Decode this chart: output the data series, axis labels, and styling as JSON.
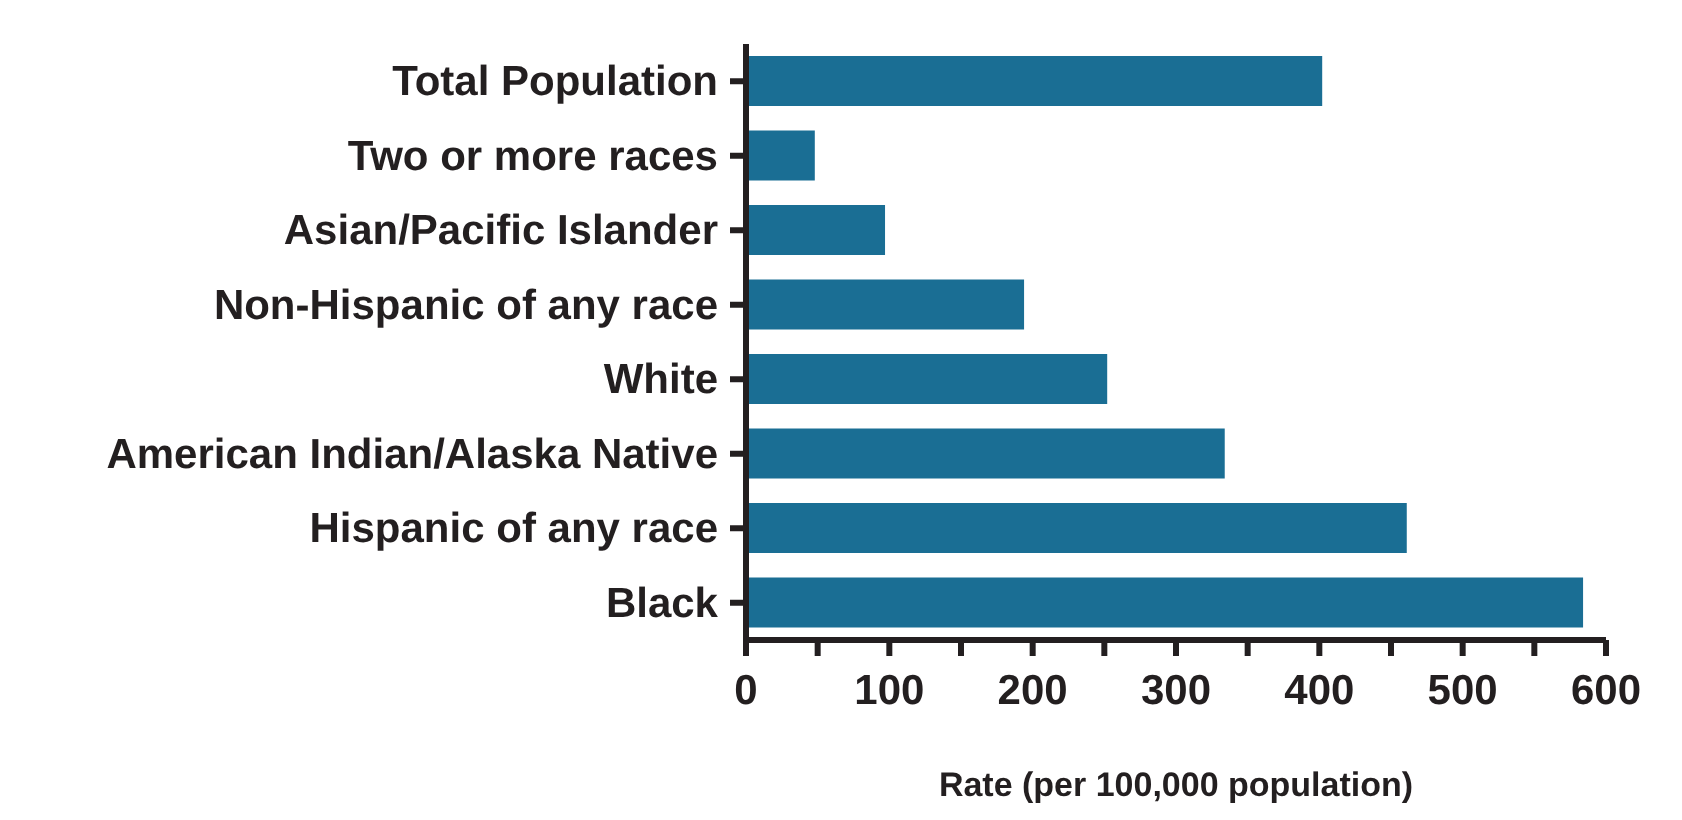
{
  "chart_data": {
    "type": "bar",
    "orientation": "horizontal",
    "categories": [
      "Total Population",
      "Two or more races",
      "Asian/Pacific Islander",
      "Non-Hispanic of any race",
      "White",
      "American Indian/Alaska Native",
      "Hispanic of any race",
      "Black"
    ],
    "values": [
      402,
      48,
      97,
      194,
      252,
      334,
      461,
      584
    ],
    "color": "#1a6e94",
    "xlabel": "Rate (per 100,000 population)",
    "xlim": [
      0,
      600
    ],
    "xticks": [
      0,
      {
        "value": 50,
        "label": null
      },
      100,
      {
        "value": 150,
        "label": null
      },
      200,
      {
        "value": 250,
        "label": null
      },
      300,
      {
        "value": 350,
        "label": null
      },
      400,
      {
        "value": 450,
        "label": null
      },
      500,
      {
        "value": 550,
        "label": null
      },
      600
    ],
    "grid": false,
    "legend": false
  }
}
